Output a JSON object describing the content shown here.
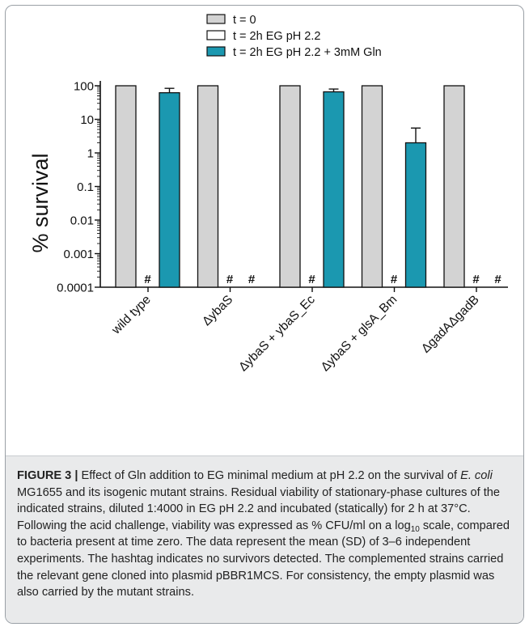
{
  "chart_data": {
    "type": "bar",
    "scale": "log10",
    "ylabel": "% survival",
    "ylim": [
      0.0001,
      100
    ],
    "yticks": [
      "100",
      "10",
      "1",
      "0.1",
      "0.01",
      "0.001",
      "0.0001"
    ],
    "categories": [
      "wild type",
      "ΔybaS",
      "ΔybaS + ybaS_Ec",
      "ΔybaS + glsA_Bm",
      "ΔgadAΔgadB"
    ],
    "series": [
      {
        "name": "t = 0",
        "color": "#d3d3d3",
        "values": [
          100,
          100,
          100,
          100,
          100
        ],
        "error": [
          null,
          null,
          null,
          null,
          null
        ]
      },
      {
        "name": "t = 2h EG pH 2.2",
        "color": "#ffffff",
        "values": [
          null,
          null,
          null,
          null,
          null
        ],
        "error": [
          null,
          null,
          null,
          null,
          null
        ]
      },
      {
        "name": "t = 2h EG pH 2.2 + 3mM Gln",
        "color": "#1b98b0",
        "values": [
          62,
          null,
          66,
          2,
          null
        ],
        "error": [
          84,
          null,
          80,
          5.5,
          null
        ]
      }
    ],
    "no_survivors": [
      [
        false,
        true,
        false
      ],
      [
        false,
        true,
        true
      ],
      [
        false,
        true,
        false
      ],
      [
        false,
        true,
        false
      ],
      [
        false,
        true,
        true
      ]
    ],
    "no_survivor_marker": "#",
    "legend_position": "top-center",
    "grid": false
  },
  "caption": {
    "label": "FIGURE 3 |",
    "p1": " Effect of Gln addition to EG minimal medium at pH 2.2 on the survival of ",
    "organism": "E. coli",
    "p2": " MG1655 and its isogenic mutant strains. Residual viability of stationary-phase cultures of the indicated strains, diluted 1:4000 in EG pH 2.2 and incubated (statically) for 2 h at 37°C. Following the acid challenge, viability was expressed as % CFU/ml on a log",
    "sub": "10",
    "p3": " scale, compared to bacteria present at time zero. The data represent the mean (SD) of 3–6 independent experiments. The hashtag indicates no survivors detected. The complemented strains carried the relevant gene cloned into plasmid pBBR1MCS. For consistency, the empty plasmid was also carried by the mutant strains."
  }
}
